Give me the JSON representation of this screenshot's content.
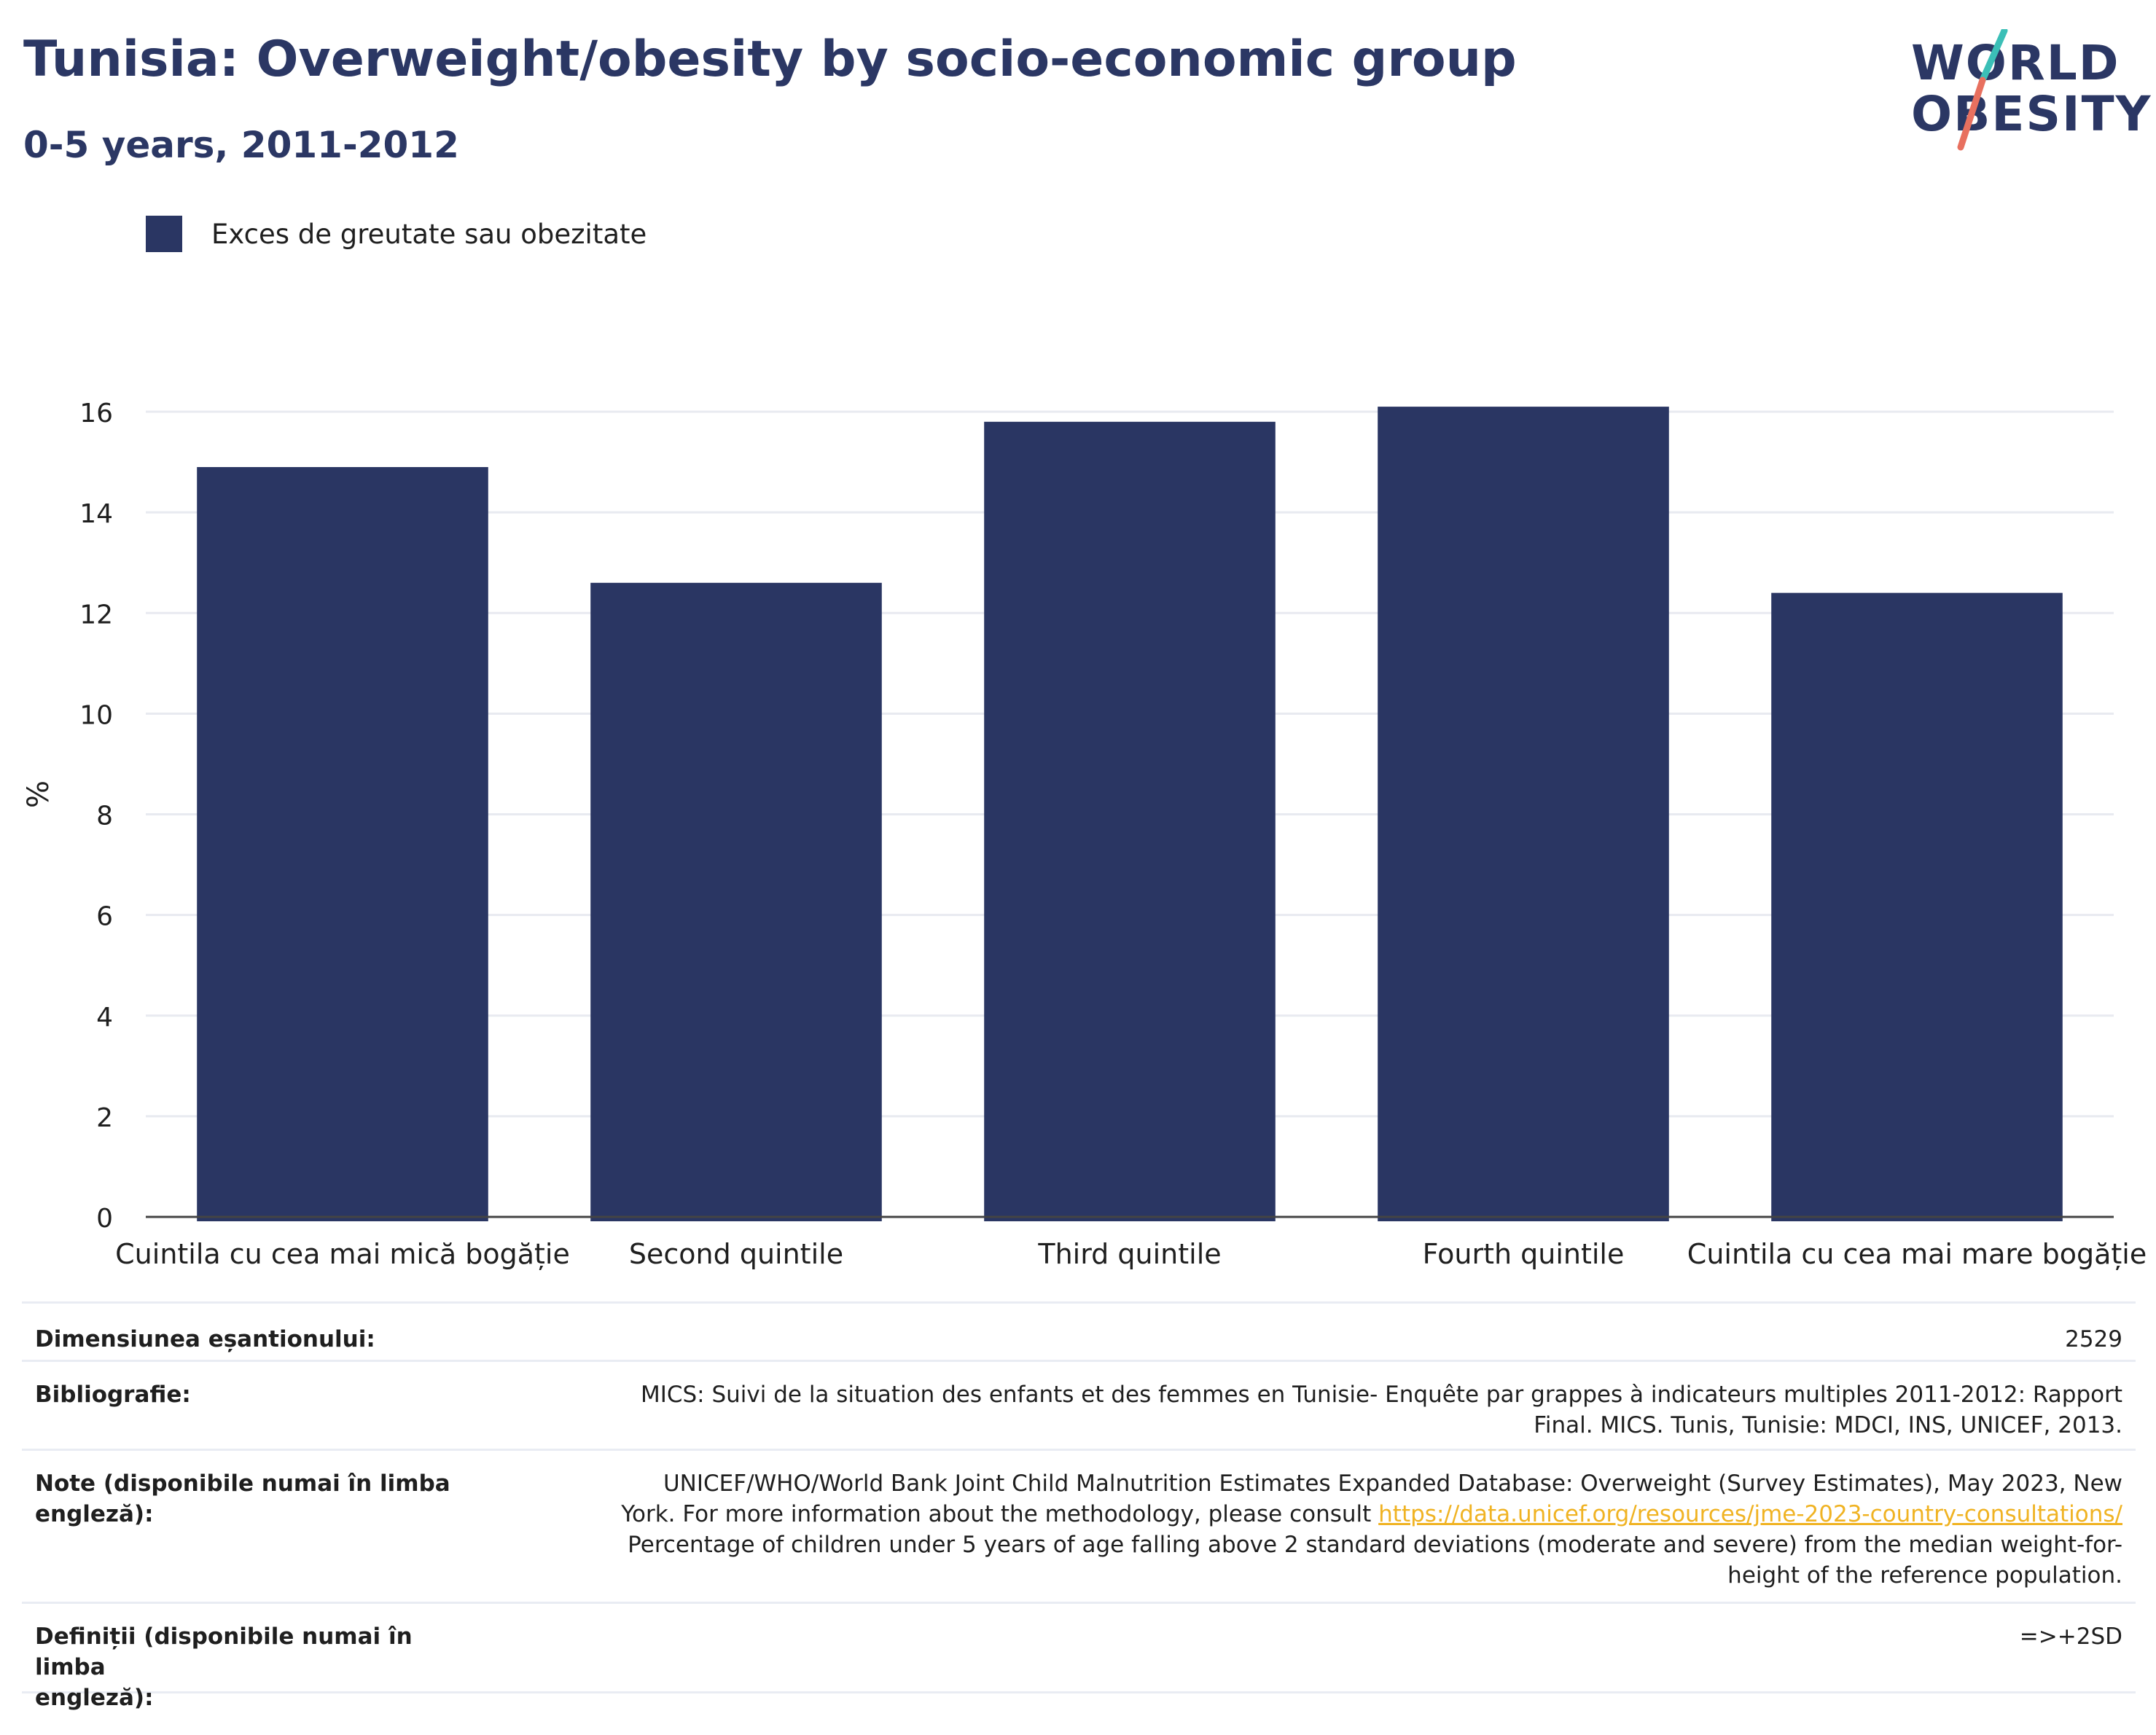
{
  "header": {
    "title": "Tunisia: Overweight/obesity by socio-economic group",
    "subtitle": "0-5 years, 2011-2012"
  },
  "logo": {
    "line1": "WORLD",
    "line2": "OBESITY",
    "colors": {
      "text": "#2b3764",
      "slash_top": "#3bbfb7",
      "slash_bottom": "#e8705f"
    }
  },
  "legend": {
    "label": "Exces de greutate sau obezitate",
    "color": "#2a3663"
  },
  "chart_data": {
    "type": "bar",
    "categories": [
      "Cuintila cu cea mai mică bogăție",
      "Second quintile",
      "Third quintile",
      "Fourth quintile",
      "Cuintila cu cea mai mare bogăție"
    ],
    "series": [
      {
        "name": "Exces de greutate sau obezitate",
        "values": [
          14.9,
          12.6,
          15.8,
          16.1,
          12.4
        ],
        "color": "#2a3663"
      }
    ],
    "ylabel": "%",
    "ylim": [
      0,
      16
    ],
    "yticks": [
      0,
      2,
      4,
      6,
      8,
      10,
      12,
      14,
      16
    ],
    "grid": true,
    "legend_position": "top-left"
  },
  "info": {
    "sample_size_label": "Dimensiunea eșantionului:",
    "sample_size_value": "2529",
    "bibliography_label": "Bibliografie:",
    "bibliography_line1": "MICS: Suivi de la situation des enfants et des femmes en Tunisie- Enquête par grappes à indicateurs multiples 2011-2012: Rapport",
    "bibliography_line2": "Final. MICS. Tunis, Tunisie: MDCI, INS, UNICEF, 2013.",
    "notes_label": "Note (disponibile numai în limba engleză):",
    "notes_line1": "UNICEF/WHO/World Bank Joint Child Malnutrition Estimates Expanded Database: Overweight (Survey Estimates), May 2023, New",
    "notes_line2_prefix": "York. For more information about the methodology, please consult",
    "notes_link": "https://data.unicef.org/resources/jme-2023-country-consultations/",
    "notes_line3": "Percentage of children under 5 years of age falling above 2 standard deviations (moderate and severe) from the median weight-for-",
    "notes_line4": "height of the reference population.",
    "definitions_label_line1": "Definiții (disponibile numai în limba",
    "definitions_label_line2": "engleză):",
    "definitions_value": "=>+2SD"
  }
}
